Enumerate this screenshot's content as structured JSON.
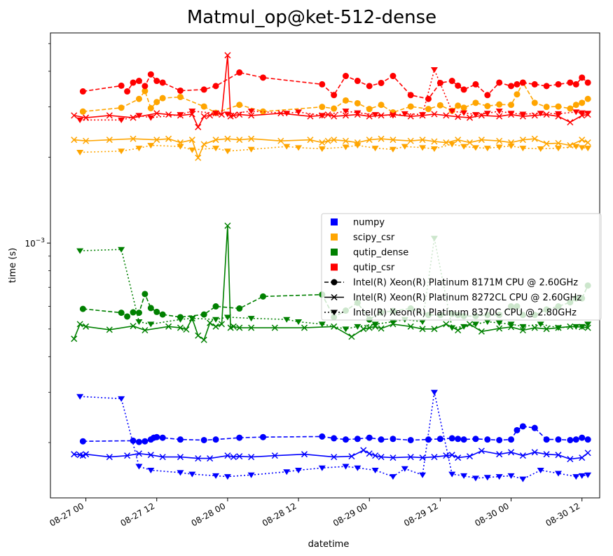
{
  "chart_data": {
    "type": "line",
    "title": "Matmul_op@ket-512-dense",
    "xlabel": "datetime",
    "ylabel": "time (s)",
    "yscale": "log",
    "ylim": [
      0.000128,
      0.00545
    ],
    "xlim_hours": [
      -6,
      87
    ],
    "x_ticks": [
      {
        "hour": 0,
        "label": "08-27 00"
      },
      {
        "hour": 12,
        "label": "08-27 12"
      },
      {
        "hour": 24,
        "label": "08-28 00"
      },
      {
        "hour": 36,
        "label": "08-28 12"
      },
      {
        "hour": 48,
        "label": "08-29 00"
      },
      {
        "hour": 60,
        "label": "08-29 12"
      },
      {
        "hour": 72,
        "label": "08-30 00"
      },
      {
        "hour": 84,
        "label": "08-30 12"
      }
    ],
    "y_major_tick": {
      "value": 0.001,
      "label": "10",
      "exponent": "−3"
    },
    "y_minor_ticks": [
      0.0002,
      0.0003,
      0.0004,
      0.0005,
      0.0006,
      0.0007,
      0.0008,
      0.0009,
      0.002,
      0.003,
      0.004,
      0.005
    ],
    "legend": {
      "location": "center-right",
      "entries": [
        {
          "label": "numpy",
          "kind": "color",
          "color": "#0000ff"
        },
        {
          "label": "scipy_csr",
          "kind": "color",
          "color": "#ffa500"
        },
        {
          "label": "qutip_dense",
          "kind": "color",
          "color": "#008000"
        },
        {
          "label": "qutip_csr",
          "kind": "color",
          "color": "#ff0000"
        },
        {
          "label": "Intel(R) Xeon(R) Platinum 8171M CPU @ 2.60GHz",
          "kind": "cpu",
          "marker": "o",
          "dash": "dashed"
        },
        {
          "label": "Intel(R) Xeon(R) Platinum 8272CL CPU @ 2.60GHz",
          "kind": "cpu",
          "marker": "x",
          "dash": "solid"
        },
        {
          "label": "Intel(R) Xeon(R) Platinum 8370C CPU @ 2.80GHz",
          "kind": "cpu",
          "marker": "v",
          "dash": "dotted"
        }
      ]
    },
    "series": [
      {
        "library": "numpy",
        "cpu": "8171M",
        "color": "#0000ff",
        "marker": "o",
        "dash": "dashed",
        "x": [
          -0.5,
          8,
          9,
          10,
          11,
          11.5,
          12,
          13,
          16,
          20,
          22,
          26,
          30,
          40,
          42,
          44,
          46,
          48,
          50,
          52,
          55,
          58,
          60,
          62,
          63,
          64,
          66,
          68,
          70,
          72,
          73,
          74,
          76,
          78,
          80,
          82,
          83,
          84,
          85
        ],
        "y": [
          0.000202,
          0.000203,
          0.000201,
          0.000202,
          0.000205,
          0.000208,
          0.000209,
          0.000208,
          0.000205,
          0.000204,
          0.000205,
          0.000208,
          0.000209,
          0.00021,
          0.000207,
          0.000205,
          0.000206,
          0.000208,
          0.000205,
          0.000206,
          0.000204,
          0.000205,
          0.000206,
          0.000207,
          0.000206,
          0.000205,
          0.000206,
          0.000205,
          0.000204,
          0.000205,
          0.000221,
          0.000228,
          0.000225,
          0.000205,
          0.000205,
          0.000204,
          0.000205,
          0.000208,
          0.000205
        ]
      },
      {
        "library": "numpy",
        "cpu": "8272CL",
        "color": "#0000ff",
        "marker": "x",
        "dash": "solid",
        "x": [
          -2,
          -1,
          -0.5,
          0,
          4,
          7,
          9,
          11,
          13,
          16,
          19,
          21,
          24,
          25,
          26,
          28,
          32,
          37,
          42,
          45,
          47,
          48,
          49,
          50,
          52,
          55,
          57,
          59,
          61,
          62,
          63,
          65,
          67,
          70,
          72,
          74,
          76,
          78,
          80,
          82,
          84,
          85
        ],
        "y": [
          0.000182,
          0.000181,
          0.00018,
          0.000182,
          0.000178,
          0.00018,
          0.000183,
          0.000181,
          0.000178,
          0.000178,
          0.000176,
          0.000176,
          0.00018,
          0.000178,
          0.000179,
          0.000178,
          0.00018,
          0.000182,
          0.000178,
          0.000179,
          0.000188,
          0.000183,
          0.00018,
          0.000178,
          0.000177,
          0.000178,
          0.000177,
          0.000178,
          0.00018,
          0.000181,
          0.000177,
          0.000179,
          0.000187,
          0.000182,
          0.000185,
          0.00018,
          0.000185,
          0.000182,
          0.000181,
          0.000175,
          0.000177,
          0.000184
        ]
      },
      {
        "library": "numpy",
        "cpu": "8370C",
        "color": "#0000ff",
        "marker": "v",
        "dash": "dotted",
        "x": [
          -1,
          6,
          9,
          11,
          16,
          18,
          22,
          24,
          28,
          34,
          36,
          40,
          44,
          46,
          49,
          52,
          54,
          57,
          59,
          62,
          64,
          66,
          68,
          70,
          72,
          74,
          77,
          80,
          83,
          84,
          85
        ],
        "y": [
          0.00029,
          0.000285,
          0.000165,
          0.00016,
          0.000157,
          0.000155,
          0.000153,
          0.000152,
          0.000154,
          0.000158,
          0.00016,
          0.000163,
          0.000165,
          0.000163,
          0.00016,
          0.000152,
          0.000162,
          0.000154,
          0.0003,
          0.000155,
          0.000153,
          0.00015,
          0.000151,
          0.000152,
          0.000153,
          0.000149,
          0.00016,
          0.000156,
          0.000152,
          0.000153,
          0.000154
        ]
      },
      {
        "library": "scipy_csr",
        "cpu": "8171M",
        "color": "#ffa500",
        "marker": "o",
        "dash": "dashed",
        "x": [
          -0.5,
          6,
          9,
          10,
          11,
          12,
          13,
          16,
          20,
          22,
          26,
          30,
          40,
          42,
          44,
          46,
          48,
          50,
          52,
          55,
          58,
          60,
          62,
          63,
          64,
          66,
          68,
          70,
          72,
          73,
          74,
          76,
          78,
          80,
          82,
          83,
          84,
          85
        ],
        "y": [
          0.00289,
          0.00298,
          0.0032,
          0.00341,
          0.00297,
          0.00312,
          0.00322,
          0.00325,
          0.00301,
          0.00286,
          0.00305,
          0.00289,
          0.003,
          0.00296,
          0.00316,
          0.00309,
          0.00295,
          0.00305,
          0.00287,
          0.00301,
          0.00295,
          0.00304,
          0.00291,
          0.00303,
          0.00298,
          0.0031,
          0.00302,
          0.00306,
          0.00305,
          0.00332,
          0.00365,
          0.0031,
          0.003,
          0.00301,
          0.00296,
          0.00305,
          0.0031,
          0.0032
        ]
      },
      {
        "library": "scipy_csr",
        "cpu": "8272CL",
        "color": "#ffa500",
        "marker": "x",
        "dash": "solid",
        "x": [
          -2,
          0,
          4,
          8,
          12,
          14,
          16,
          18,
          19,
          20,
          22,
          24,
          26,
          28,
          33,
          38,
          40,
          41,
          42,
          44,
          46,
          48,
          50,
          52,
          55,
          57,
          59,
          61,
          63,
          65,
          67,
          70,
          72,
          74,
          76,
          78,
          80,
          82,
          84,
          85
        ],
        "y": [
          0.0023,
          0.00228,
          0.0023,
          0.00232,
          0.0023,
          0.00232,
          0.00225,
          0.0023,
          0.00199,
          0.00222,
          0.0023,
          0.00232,
          0.0023,
          0.00232,
          0.00228,
          0.0023,
          0.00225,
          0.00228,
          0.0023,
          0.00228,
          0.00225,
          0.0023,
          0.00232,
          0.0023,
          0.00228,
          0.0023,
          0.00227,
          0.00225,
          0.0023,
          0.00225,
          0.0023,
          0.00228,
          0.00225,
          0.0023,
          0.00232,
          0.00223,
          0.00224,
          0.0022,
          0.0023,
          0.00225
        ]
      },
      {
        "library": "scipy_csr",
        "cpu": "8370C",
        "color": "#ffa500",
        "marker": "v",
        "dash": "dotted",
        "x": [
          -1,
          6,
          9,
          11,
          16,
          18,
          22,
          24,
          28,
          34,
          36,
          40,
          44,
          46,
          49,
          52,
          54,
          57,
          59,
          62,
          64,
          66,
          68,
          70,
          72,
          74,
          77,
          80,
          83,
          84,
          85
        ],
        "y": [
          0.00208,
          0.0021,
          0.00215,
          0.0022,
          0.00218,
          0.00212,
          0.00215,
          0.0021,
          0.00213,
          0.00218,
          0.00216,
          0.00214,
          0.00217,
          0.0022,
          0.00215,
          0.00213,
          0.00218,
          0.00216,
          0.00214,
          0.00222,
          0.00218,
          0.00216,
          0.00215,
          0.00217,
          0.00219,
          0.00215,
          0.00214,
          0.00215,
          0.00218,
          0.00216,
          0.00215
        ]
      },
      {
        "library": "qutip_dense",
        "cpu": "8171M",
        "color": "#008000",
        "marker": "o",
        "dash": "dashed",
        "x": [
          -0.5,
          6,
          7,
          8,
          9,
          10,
          11,
          12,
          13,
          16,
          20,
          22,
          26,
          30,
          40,
          42,
          44,
          46,
          48,
          50,
          52,
          55,
          58,
          60,
          62,
          63,
          64,
          66,
          68,
          70,
          72,
          73,
          74,
          76,
          78,
          80,
          82,
          83,
          84,
          85
        ],
        "y": [
          0.000588,
          0.00057,
          0.000553,
          0.000572,
          0.00057,
          0.000663,
          0.000592,
          0.000574,
          0.000562,
          0.00055,
          0.000562,
          0.0006,
          0.00059,
          0.00065,
          0.00066,
          0.00055,
          0.00058,
          0.000618,
          0.00054,
          0.000572,
          0.000578,
          0.00059,
          0.00056,
          0.00056,
          0.000565,
          0.00056,
          0.000555,
          0.000555,
          0.00056,
          0.00056,
          0.0006,
          0.0006,
          0.00056,
          0.00056,
          0.000585,
          0.0006,
          0.00062,
          0.00064,
          0.00064,
          0.00071
        ]
      },
      {
        "library": "qutip_dense",
        "cpu": "8272CL",
        "color": "#008000",
        "marker": "x",
        "dash": "solid",
        "x": [
          -2,
          -1,
          0,
          4,
          8,
          10,
          14,
          16,
          17,
          18,
          19,
          20,
          21,
          22,
          23,
          24,
          24.5,
          25,
          26,
          28,
          32,
          37,
          42,
          45,
          47,
          48,
          49,
          50,
          52,
          55,
          57,
          59,
          61,
          63,
          65,
          67,
          70,
          72,
          74,
          76,
          78,
          80,
          82,
          84,
          85
        ],
        "y": [
          0.000462,
          0.00052,
          0.00051,
          0.000497,
          0.000512,
          0.000495,
          0.00051,
          0.000505,
          0.000498,
          0.000545,
          0.000474,
          0.000458,
          0.000525,
          0.00051,
          0.00052,
          0.00115,
          0.000505,
          0.00051,
          0.000505,
          0.000505,
          0.000505,
          0.000505,
          0.00051,
          0.00047,
          0.0005,
          0.000505,
          0.00051,
          0.000502,
          0.00052,
          0.00051,
          0.0005,
          0.0005,
          0.00052,
          0.000495,
          0.00052,
          0.00049,
          0.000502,
          0.000508,
          0.000495,
          0.000505,
          0.0005,
          0.000505,
          0.00051,
          0.000508,
          0.000505
        ]
      },
      {
        "library": "qutip_dense",
        "cpu": "8370C",
        "color": "#008000",
        "marker": "v",
        "dash": "dotted",
        "x": [
          -1,
          6,
          9,
          11,
          16,
          18,
          22,
          24,
          28,
          34,
          36,
          40,
          44,
          46,
          49,
          52,
          54,
          57,
          59,
          62,
          64,
          66,
          68,
          70,
          72,
          74,
          77,
          80,
          83,
          84,
          85
        ],
        "y": [
          0.00094,
          0.00095,
          0.00053,
          0.00052,
          0.00054,
          0.000545,
          0.00054,
          0.00055,
          0.000545,
          0.00054,
          0.00053,
          0.00052,
          0.0005,
          0.00051,
          0.00052,
          0.00053,
          0.00054,
          0.00053,
          0.00104,
          0.000505,
          0.00051,
          0.00052,
          0.00053,
          0.000525,
          0.00052,
          0.00051,
          0.00052,
          0.000505,
          0.00051,
          0.00051,
          0.00052
        ]
      },
      {
        "library": "qutip_csr",
        "cpu": "8171M",
        "color": "#ff0000",
        "marker": "o",
        "dash": "dashed",
        "x": [
          -0.5,
          6,
          7,
          8,
          9,
          10,
          11,
          12,
          13,
          16,
          20,
          22,
          26,
          30,
          40,
          42,
          44,
          46,
          48,
          50,
          52,
          55,
          58,
          60,
          62,
          63,
          64,
          66,
          68,
          70,
          72,
          73,
          74,
          76,
          78,
          80,
          82,
          83,
          84,
          85
        ],
        "y": [
          0.0034,
          0.00356,
          0.0034,
          0.00365,
          0.0037,
          0.00355,
          0.0039,
          0.0037,
          0.00365,
          0.00342,
          0.00345,
          0.00355,
          0.00396,
          0.0038,
          0.0036,
          0.0033,
          0.00385,
          0.0037,
          0.00355,
          0.00364,
          0.00385,
          0.0033,
          0.0032,
          0.00364,
          0.0037,
          0.00356,
          0.00345,
          0.0036,
          0.0033,
          0.00365,
          0.00355,
          0.0036,
          0.00365,
          0.0036,
          0.00355,
          0.0036,
          0.00365,
          0.0036,
          0.0038,
          0.00365
        ]
      },
      {
        "library": "qutip_csr",
        "cpu": "8272CL",
        "color": "#ff0000",
        "marker": "x",
        "dash": "solid",
        "x": [
          -2,
          0,
          4,
          8,
          12,
          14,
          16,
          18,
          19,
          20,
          21,
          22,
          23,
          24,
          24.5,
          25,
          26,
          28,
          33,
          38,
          40,
          41,
          42,
          44,
          46,
          48,
          50,
          52,
          55,
          57,
          59,
          61,
          63,
          65,
          67,
          70,
          72,
          74,
          76,
          78,
          80,
          82,
          84,
          85
        ],
        "y": [
          0.0028,
          0.00275,
          0.0028,
          0.00275,
          0.00285,
          0.00282,
          0.0028,
          0.00283,
          0.00255,
          0.00278,
          0.0028,
          0.00285,
          0.00282,
          0.00455,
          0.00278,
          0.0028,
          0.00282,
          0.0028,
          0.00285,
          0.00278,
          0.0028,
          0.00282,
          0.00278,
          0.0028,
          0.00282,
          0.00278,
          0.0028,
          0.00282,
          0.00278,
          0.0028,
          0.00283,
          0.0028,
          0.00277,
          0.00275,
          0.0028,
          0.00278,
          0.00282,
          0.00278,
          0.0028,
          0.00282,
          0.00278,
          0.00265,
          0.0028,
          0.00282
        ]
      },
      {
        "library": "qutip_csr",
        "cpu": "8370C",
        "color": "#ff0000",
        "marker": "v",
        "dash": "dotted",
        "x": [
          -1,
          6,
          9,
          11,
          16,
          18,
          22,
          24,
          28,
          34,
          36,
          40,
          44,
          46,
          49,
          52,
          54,
          57,
          59,
          62,
          64,
          66,
          68,
          70,
          72,
          74,
          77,
          80,
          83,
          84,
          85
        ],
        "y": [
          0.0027,
          0.0027,
          0.0028,
          0.00275,
          0.00282,
          0.0029,
          0.00285,
          0.00283,
          0.0029,
          0.00285,
          0.00288,
          0.0028,
          0.0029,
          0.00286,
          0.00282,
          0.0028,
          0.00284,
          0.00282,
          0.00405,
          0.0029,
          0.00286,
          0.00282,
          0.00285,
          0.0029,
          0.00285,
          0.00283,
          0.00285,
          0.00284,
          0.00288,
          0.00286,
          0.00285
        ]
      }
    ]
  }
}
